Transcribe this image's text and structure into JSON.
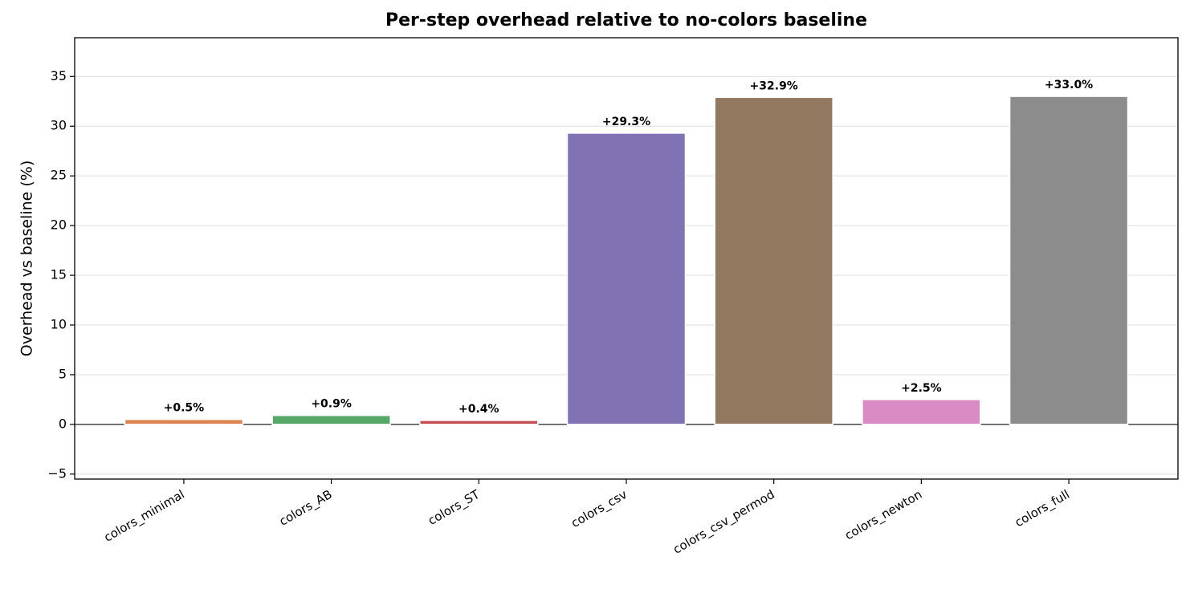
{
  "chart_data": {
    "type": "bar",
    "title": "Per-step overhead relative to no-colors baseline",
    "y_label": "Overhead vs baseline (%)",
    "categories": [
      "colors_minimal",
      "colors_AB",
      "colors_ST",
      "colors_csv",
      "colors_csv_permod",
      "colors_newton",
      "colors_full"
    ],
    "values": [
      0.5,
      0.9,
      0.4,
      29.3,
      32.9,
      2.5,
      33.0
    ],
    "value_labels": [
      "+0.5%",
      "+0.9%",
      "+0.4%",
      "+29.3%",
      "+32.9%",
      "+2.5%",
      "+33.0%"
    ],
    "colors": [
      "#dd8452",
      "#55a868",
      "#c44e52",
      "#8172b3",
      "#937860",
      "#da8bc3",
      "#8c8c8c"
    ],
    "ylim": [
      -5.5,
      38.9
    ],
    "yticks": [
      {
        "value": -5,
        "label": "−5"
      },
      0,
      5,
      10,
      15,
      20,
      25,
      30,
      35
    ],
    "grid": true
  }
}
